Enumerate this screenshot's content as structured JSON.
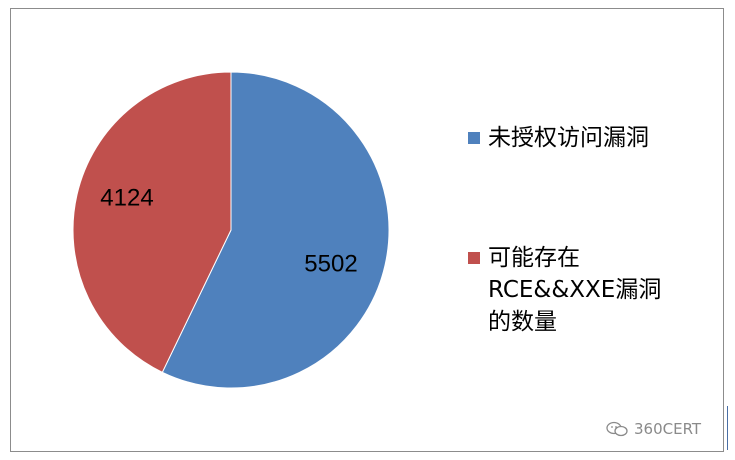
{
  "chart_data": {
    "type": "pie",
    "slices": [
      {
        "label": "未授权访问漏洞",
        "value": 5502,
        "color": "#4f81bd"
      },
      {
        "label": "可能存在\nRCE&&XXE漏洞\n的数量",
        "value": 4124,
        "color": "#c0504d"
      }
    ],
    "data_labels": [
      "5502",
      "4124"
    ],
    "legend_position": "right"
  },
  "watermark": {
    "text": "360CERT",
    "icon": "wechat-icon"
  }
}
